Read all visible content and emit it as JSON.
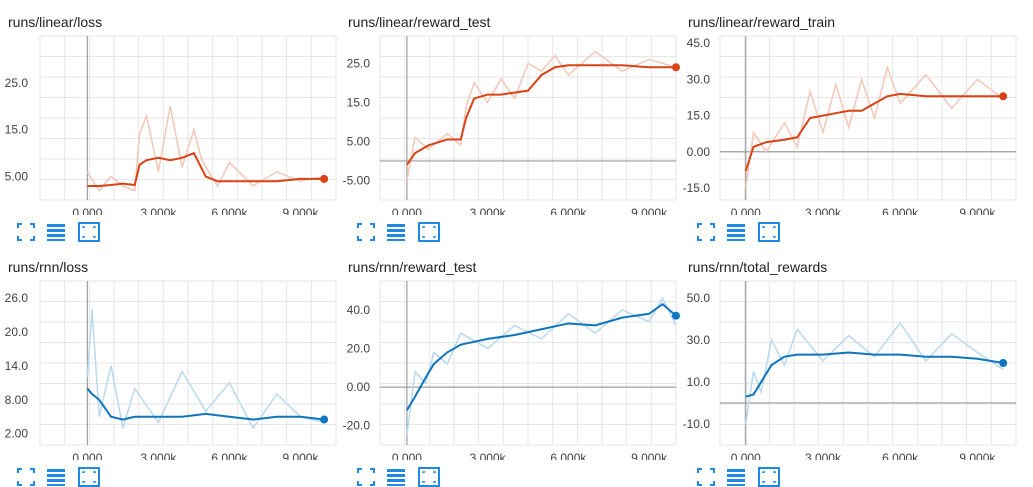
{
  "colors": {
    "orange": "#d84315",
    "orange_light": "#f4c6b8",
    "blue": "#0f75bc",
    "blue_light": "#b9d9ee",
    "grid": "#e6e6e6",
    "axis": "#9e9e9e",
    "zero": "#9e9e9e"
  },
  "buttons": {
    "expand_icon": "expand-icon",
    "log_icon": "log-scale-icon",
    "fit_icon": "fit-domain-icon"
  },
  "chart_data": [
    {
      "type": "line",
      "title": "runs/linear/loss",
      "color": "orange",
      "xlim": [
        -2000,
        10500
      ],
      "ylim": [
        0,
        35
      ],
      "xticks": [
        0,
        3000,
        6000,
        9000
      ],
      "xtick_labels": [
        "0.000",
        "3.000k",
        "6.000k",
        "9.000k"
      ],
      "yticks": [
        5,
        15,
        25
      ],
      "ytick_labels": [
        "5.00",
        "15.0",
        "25.0"
      ],
      "x": [
        0,
        500,
        1000,
        1500,
        2000,
        2200,
        2500,
        3000,
        3500,
        4000,
        4500,
        4800,
        5000,
        5500,
        6000,
        7000,
        8000,
        9000,
        10000
      ],
      "y": [
        3,
        3,
        3.2,
        3.5,
        3.2,
        7.5,
        8.5,
        9,
        8.5,
        9,
        10,
        7,
        5,
        4,
        4,
        4,
        4,
        4.5,
        4.5
      ],
      "raw_y": [
        6,
        2,
        5,
        3,
        2,
        14,
        18,
        6,
        20,
        7,
        15,
        9,
        7,
        3,
        8,
        3,
        6,
        4,
        5
      ]
    },
    {
      "type": "line",
      "title": "runs/linear/reward_test",
      "color": "orange",
      "xlim": [
        -1000,
        10000
      ],
      "ylim": [
        -10,
        32
      ],
      "xticks": [
        0,
        3000,
        6000,
        9000
      ],
      "xtick_labels": [
        "0.000",
        "3.000k",
        "6.000k",
        "9.000k"
      ],
      "yticks": [
        -5,
        5,
        15,
        25
      ],
      "ytick_labels": [
        "-5.00",
        "5.00",
        "15.0",
        "25.0"
      ],
      "zero_line": 0,
      "x": [
        0,
        300,
        800,
        1500,
        2000,
        2200,
        2500,
        3000,
        3500,
        4000,
        4500,
        5000,
        5500,
        6000,
        7000,
        8000,
        9000,
        10000
      ],
      "y": [
        -1,
        2,
        4,
        5.5,
        5.5,
        11,
        16,
        17,
        17,
        17.5,
        18,
        22,
        24,
        24.5,
        24.5,
        24.5,
        24,
        24
      ],
      "raw_y": [
        -5,
        6,
        3,
        7,
        4,
        14,
        20,
        15,
        21,
        16,
        25,
        23,
        27,
        22,
        28,
        23,
        26,
        24
      ]
    },
    {
      "type": "line",
      "title": "runs/linear/reward_train",
      "color": "orange",
      "xlim": [
        -1000,
        10500
      ],
      "ylim": [
        -20,
        48
      ],
      "xticks": [
        0,
        3000,
        6000,
        9000
      ],
      "xtick_labels": [
        "0.000",
        "3.000k",
        "6.000k",
        "9.000k"
      ],
      "yticks": [
        -15,
        0,
        15,
        30,
        45
      ],
      "ytick_labels": [
        "-15.0",
        "0.00",
        "15.0",
        "30.0",
        "45.0"
      ],
      "zero_line": 0,
      "x": [
        0,
        300,
        800,
        1500,
        2000,
        2500,
        3000,
        3500,
        4000,
        4500,
        5000,
        5500,
        6000,
        7000,
        8000,
        9000,
        10000
      ],
      "y": [
        -8,
        2,
        4,
        5,
        6,
        14,
        15,
        16,
        17,
        17,
        20,
        23,
        24,
        23,
        23,
        23,
        23
      ],
      "raw_y": [
        -15,
        8,
        0,
        12,
        2,
        25,
        8,
        28,
        10,
        30,
        14,
        35,
        20,
        32,
        18,
        30,
        22
      ]
    },
    {
      "type": "line",
      "title": "runs/rnn/loss",
      "color": "blue",
      "xlim": [
        -2000,
        10500
      ],
      "ylim": [
        0,
        29
      ],
      "xticks": [
        0,
        3000,
        6000,
        9000
      ],
      "xtick_labels": [
        "0.000",
        "3.000k",
        "6.000k",
        "9.000k"
      ],
      "yticks": [
        2,
        8,
        14,
        20,
        26
      ],
      "ytick_labels": [
        "2.00",
        "8.00",
        "14.0",
        "20.0",
        "26.0"
      ],
      "x": [
        0,
        200,
        500,
        1000,
        1500,
        2000,
        3000,
        4000,
        5000,
        6000,
        7000,
        8000,
        9000,
        10000
      ],
      "y": [
        10,
        9,
        8,
        5,
        4.5,
        5,
        5,
        5,
        5.5,
        5,
        4.5,
        5,
        5,
        4.5
      ],
      "raw_y": [
        12,
        24,
        5,
        14,
        3,
        10,
        4,
        13,
        6,
        11,
        3,
        9,
        5,
        4
      ]
    },
    {
      "type": "line",
      "title": "runs/rnn/reward_test",
      "color": "blue",
      "xlim": [
        -1000,
        10000
      ],
      "ylim": [
        -30,
        55
      ],
      "xticks": [
        0,
        3000,
        6000,
        9000
      ],
      "xtick_labels": [
        "0.000",
        "3.000k",
        "6.000k",
        "9.000k"
      ],
      "yticks": [
        -20,
        0,
        20,
        40
      ],
      "ytick_labels": [
        "-20.0",
        "0.00",
        "20.0",
        "40.0"
      ],
      "zero_line": 0,
      "x": [
        0,
        300,
        700,
        1000,
        1500,
        2000,
        3000,
        4000,
        5000,
        6000,
        7000,
        8000,
        9000,
        9500,
        10000
      ],
      "y": [
        -12,
        -5,
        5,
        12,
        18,
        22,
        25,
        27,
        30,
        33,
        32,
        36,
        38,
        43,
        37
      ],
      "raw_y": [
        -25,
        8,
        2,
        18,
        12,
        28,
        20,
        32,
        25,
        38,
        28,
        40,
        34,
        46,
        32
      ]
    },
    {
      "type": "line",
      "title": "runs/rnn/total_rewards",
      "color": "blue",
      "xlim": [
        -1000,
        10500
      ],
      "ylim": [
        -20,
        58
      ],
      "xticks": [
        0,
        3000,
        6000,
        9000
      ],
      "xtick_labels": [
        "0.000",
        "3.000k",
        "6.000k",
        "9.000k"
      ],
      "yticks": [
        -10,
        10,
        30,
        50
      ],
      "ytick_labels": [
        "-10.0",
        "10.0",
        "30.0",
        "50.0"
      ],
      "zero_line": 0,
      "x": [
        0,
        300,
        600,
        1000,
        1500,
        2000,
        3000,
        4000,
        5000,
        6000,
        7000,
        8000,
        9000,
        10000
      ],
      "y": [
        3,
        4,
        10,
        18,
        22,
        23,
        23,
        24,
        23,
        23,
        22,
        22,
        21,
        19
      ],
      "raw_y": [
        -10,
        15,
        5,
        30,
        18,
        35,
        20,
        32,
        22,
        38,
        20,
        33,
        24,
        16
      ]
    }
  ]
}
